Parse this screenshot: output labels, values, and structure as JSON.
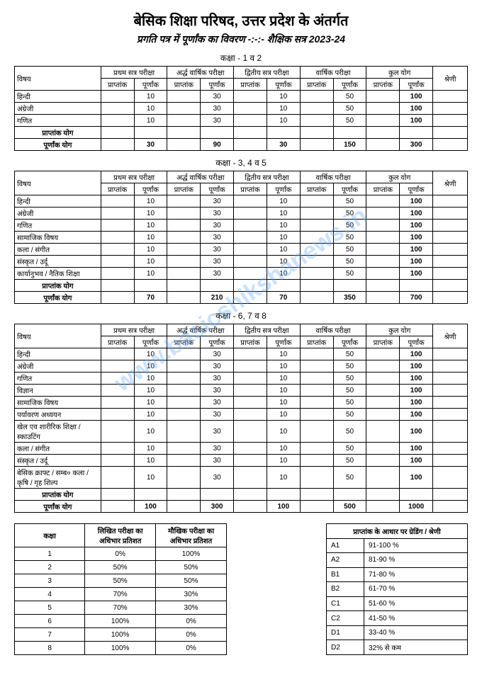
{
  "header": {
    "title": "बेसिक शिक्षा परिषद, उत्तर प्रदेश के अंतर्गत",
    "subtitle": "प्रगति पत्र में पूर्णांक का विवरण -:-:- शैक्षिक सत्र 2023-24"
  },
  "watermark": "www.basicshikshanews.in",
  "exam_headers": {
    "subject": "विषय",
    "exam1": "प्रथम सत्र परीक्षा",
    "exam2": "अर्द्ध वार्षिक परीक्षा",
    "exam3": "द्वितीय सत्र परीक्षा",
    "exam4": "वार्षिक परीक्षा",
    "total": "कुल योग",
    "grade": "श्रेणी",
    "obtained": "प्राप्तांक",
    "full": "पूर्णांक"
  },
  "totals_labels": {
    "obtained": "प्राप्तांक योग",
    "full": "पूर्णांक योग"
  },
  "tables": [
    {
      "label": "कक्षा - 1 व 2",
      "subjects": [
        {
          "name": "हिन्दी",
          "m": [
            10,
            30,
            10,
            50,
            100
          ]
        },
        {
          "name": "अंग्रेजी",
          "m": [
            10,
            30,
            10,
            50,
            100
          ]
        },
        {
          "name": "गणित",
          "m": [
            10,
            30,
            10,
            50,
            100
          ]
        }
      ],
      "full_totals": [
        30,
        90,
        30,
        150,
        300
      ]
    },
    {
      "label": "कक्षा - 3, 4 व 5",
      "subjects": [
        {
          "name": "हिन्दी",
          "m": [
            10,
            30,
            10,
            50,
            100
          ]
        },
        {
          "name": "अंग्रेजी",
          "m": [
            10,
            30,
            10,
            50,
            100
          ]
        },
        {
          "name": "गणित",
          "m": [
            10,
            30,
            10,
            50,
            100
          ]
        },
        {
          "name": "सामाजिक विषय",
          "m": [
            10,
            30,
            10,
            50,
            100
          ]
        },
        {
          "name": "कला / संगीत",
          "m": [
            10,
            30,
            10,
            50,
            100
          ]
        },
        {
          "name": "संस्कृत / उर्दू",
          "m": [
            10,
            30,
            10,
            50,
            100
          ]
        },
        {
          "name": "कार्यानुभव / नैतिक शिक्षा",
          "m": [
            10,
            30,
            10,
            50,
            100
          ]
        }
      ],
      "full_totals": [
        70,
        210,
        70,
        350,
        700
      ]
    },
    {
      "label": "कक्षा - 6, 7 व 8",
      "subjects": [
        {
          "name": "हिन्दी",
          "m": [
            10,
            30,
            10,
            50,
            100
          ]
        },
        {
          "name": "अंग्रेजी",
          "m": [
            10,
            30,
            10,
            50,
            100
          ]
        },
        {
          "name": "गणित",
          "m": [
            10,
            30,
            10,
            50,
            100
          ]
        },
        {
          "name": "विज्ञान",
          "m": [
            10,
            30,
            10,
            50,
            100
          ]
        },
        {
          "name": "सामाजिक विषय",
          "m": [
            10,
            30,
            10,
            50,
            100
          ]
        },
        {
          "name": "पर्यावरण अध्ययन",
          "m": [
            10,
            30,
            10,
            50,
            100
          ]
        },
        {
          "name": "खेल एव शारीरिक शिक्षा / स्काउटिंग",
          "m": [
            10,
            30,
            10,
            50,
            100
          ]
        },
        {
          "name": "कला / संगीत",
          "m": [
            10,
            30,
            10,
            50,
            100
          ]
        },
        {
          "name": "संस्कृत / उर्दू",
          "m": [
            10,
            30,
            10,
            50,
            100
          ]
        },
        {
          "name": "बेसिक क्राफ्ट / सम्ब० कला / कृषि / गृह शिल्प",
          "m": [
            10,
            30,
            10,
            50,
            100
          ]
        }
      ],
      "full_totals": [
        100,
        300,
        100,
        500,
        1000
      ]
    }
  ],
  "pct_table": {
    "headers": [
      "कक्षा",
      "लिखित परीक्षा का अधिभार प्रतिशत",
      "मौखिक परीक्षा का अधिभार प्रतिशत"
    ],
    "rows": [
      [
        "1",
        "0%",
        "100%"
      ],
      [
        "2",
        "50%",
        "50%"
      ],
      [
        "3",
        "50%",
        "50%"
      ],
      [
        "4",
        "70%",
        "30%"
      ],
      [
        "5",
        "70%",
        "30%"
      ],
      [
        "6",
        "100%",
        "0%"
      ],
      [
        "7",
        "100%",
        "0%"
      ],
      [
        "8",
        "100%",
        "0%"
      ]
    ]
  },
  "grade_table": {
    "header": "प्राप्तांक के आधार पर ग्रेडिंग / श्रेणी",
    "rows": [
      [
        "A1",
        "91-100 %"
      ],
      [
        "A2",
        "81-90 %"
      ],
      [
        "B1",
        "71-80 %"
      ],
      [
        "B2",
        "61-70 %"
      ],
      [
        "C1",
        "51-60 %"
      ],
      [
        "C2",
        "41-50 %"
      ],
      [
        "D1",
        "33-40 %"
      ],
      [
        "D2",
        "32% से कम"
      ]
    ]
  }
}
